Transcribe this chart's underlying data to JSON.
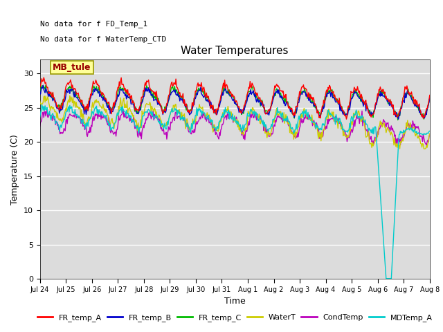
{
  "title": "Water Temperatures",
  "xlabel": "Time",
  "ylabel": "Temperature (C)",
  "ylim": [
    0,
    32
  ],
  "yticks": [
    0,
    5,
    10,
    15,
    20,
    25,
    30
  ],
  "background_color": "#dcdcdc",
  "annotations_top_left": [
    "No data for f FD_Temp_1",
    "No data for f WaterTemp_CTD"
  ],
  "mb_tule_label": "MB_tule",
  "legend_entries": [
    "FR_temp_A",
    "FR_temp_B",
    "FR_temp_C",
    "WaterT",
    "CondTemp",
    "MDTemp_A"
  ],
  "legend_colors": [
    "#ff0000",
    "#0000cc",
    "#00bb00",
    "#cccc00",
    "#bb00bb",
    "#00cccc"
  ],
  "tick_labels": [
    "Jul 24",
    "Jul 25",
    "Jul 26",
    "Jul 27",
    "Jul 28",
    "Jul 29",
    "Jul 30",
    "Jul 31",
    "Aug 1",
    "Aug 2",
    "Aug 3",
    "Aug 4",
    "Aug 5",
    "Aug 6",
    "Aug 7",
    "Aug 8"
  ]
}
